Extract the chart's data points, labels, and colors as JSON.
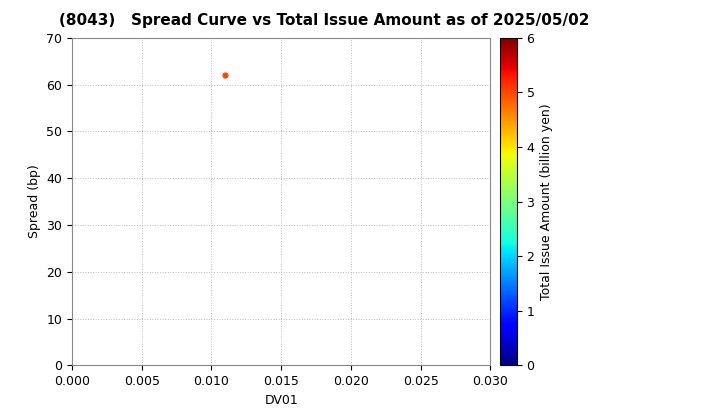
{
  "title": "(8043)   Spread Curve vs Total Issue Amount as of 2025/05/02",
  "xlabel": "DV01",
  "ylabel": "Spread (bp)",
  "colorbar_label": "Total Issue Amount (billion yen)",
  "xlim": [
    0.0,
    0.03
  ],
  "ylim": [
    0,
    70
  ],
  "xticks": [
    0.0,
    0.005,
    0.01,
    0.015,
    0.02,
    0.025,
    0.03
  ],
  "yticks": [
    0,
    10,
    20,
    30,
    40,
    50,
    60,
    70
  ],
  "colorbar_min": 0,
  "colorbar_max": 6,
  "colorbar_ticks": [
    0,
    1,
    2,
    3,
    4,
    5,
    6
  ],
  "scatter_x": [
    0.011
  ],
  "scatter_y": [
    62
  ],
  "scatter_color_value": [
    5.0
  ],
  "scatter_size": 12,
  "background_color": "#ffffff",
  "grid_color": "#bbbbbb",
  "title_fontsize": 11,
  "axis_label_fontsize": 9,
  "colorbar_label_fontsize": 9,
  "tick_fontsize": 9
}
